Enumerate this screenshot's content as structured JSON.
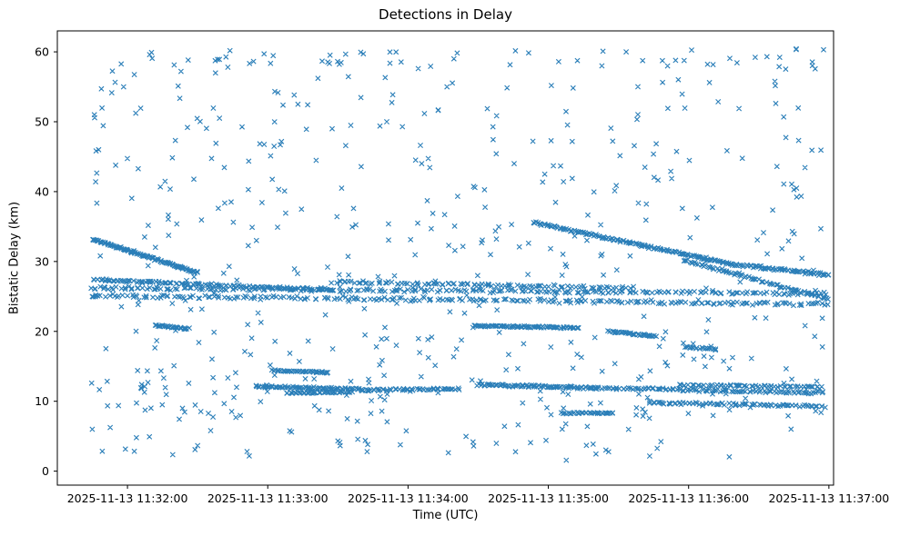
{
  "chart_data": {
    "type": "scatter",
    "title": "Detections in Delay",
    "xlabel": "Time (UTC)",
    "ylabel": "Bistatic Delay (km)",
    "marker": "x",
    "marker_color": "#1f77b4",
    "grid": false,
    "legend": null,
    "x_tick_labels": [
      "2025-11-13 11:32:00",
      "2025-11-13 11:33:00",
      "2025-11-13 11:34:00",
      "2025-11-13 11:35:00",
      "2025-11-13 11:36:00",
      "2025-11-13 11:37:00"
    ],
    "x_tick_seconds": [
      0,
      60,
      120,
      180,
      240,
      300
    ],
    "xlim_seconds": [
      -30,
      302
    ],
    "y_ticks": [
      0,
      10,
      20,
      30,
      40,
      50,
      60
    ],
    "ylim": [
      -2,
      63
    ],
    "seed": 20251113,
    "tracks": [
      {
        "t": [
          -15,
          30
        ],
        "d": [
          33.2,
          28.4
        ],
        "n": 110,
        "jitter": 0.18
      },
      {
        "t": [
          -15,
          88
        ],
        "d": [
          27.4,
          25.9
        ],
        "n": 130,
        "jitter": 0.2
      },
      {
        "t": [
          -16,
          300
        ],
        "d": [
          25.1,
          23.9
        ],
        "n": 240,
        "jitter": 0.3
      },
      {
        "t": [
          -16,
          300
        ],
        "d": [
          26.2,
          25.4
        ],
        "n": 240,
        "jitter": 0.3
      },
      {
        "t": [
          88,
          215
        ],
        "d": [
          27.1,
          26.2
        ],
        "n": 110,
        "jitter": 0.25
      },
      {
        "t": [
          174,
          258
        ],
        "d": [
          35.6,
          29.6
        ],
        "n": 150,
        "jitter": 0.2
      },
      {
        "t": [
          258,
          300
        ],
        "d": [
          29.6,
          28.1
        ],
        "n": 70,
        "jitter": 0.25
      },
      {
        "t": [
          238,
          300
        ],
        "d": [
          30.2,
          24.6
        ],
        "n": 80,
        "jitter": 0.2
      },
      {
        "t": [
          148,
          193
        ],
        "d": [
          20.8,
          20.5
        ],
        "n": 85,
        "jitter": 0.15
      },
      {
        "t": [
          12,
          26
        ],
        "d": [
          20.8,
          20.4
        ],
        "n": 28,
        "jitter": 0.15
      },
      {
        "t": [
          206,
          226
        ],
        "d": [
          20.0,
          19.3
        ],
        "n": 36,
        "jitter": 0.15
      },
      {
        "t": [
          55,
          100
        ],
        "d": [
          12.1,
          11.7
        ],
        "n": 75,
        "jitter": 0.2
      },
      {
        "t": [
          68,
          96
        ],
        "d": [
          11.2,
          11.3
        ],
        "n": 40,
        "jitter": 0.15
      },
      {
        "t": [
          100,
          142
        ],
        "d": [
          11.6,
          11.8
        ],
        "n": 55,
        "jitter": 0.2
      },
      {
        "t": [
          150,
          200
        ],
        "d": [
          12.4,
          11.9
        ],
        "n": 85,
        "jitter": 0.2
      },
      {
        "t": [
          200,
          298
        ],
        "d": [
          11.9,
          11.2
        ],
        "n": 110,
        "jitter": 0.25
      },
      {
        "t": [
          236,
          296
        ],
        "d": [
          12.3,
          12.1
        ],
        "n": 60,
        "jitter": 0.15
      },
      {
        "t": [
          224,
          298
        ],
        "d": [
          9.8,
          9.3
        ],
        "n": 85,
        "jitter": 0.2
      },
      {
        "t": [
          186,
          208
        ],
        "d": [
          8.3,
          8.3
        ],
        "n": 34,
        "jitter": 0.12
      },
      {
        "t": [
          62,
          86
        ],
        "d": [
          14.4,
          14.1
        ],
        "n": 40,
        "jitter": 0.15
      },
      {
        "t": [
          238,
          252
        ],
        "d": [
          17.8,
          17.5
        ],
        "n": 20,
        "jitter": 0.2
      }
    ],
    "clutter": [
      {
        "count": 380,
        "t": [
          -16,
          298
        ],
        "d": [
          17,
          60.5
        ]
      },
      {
        "count": 130,
        "t": [
          -16,
          298
        ],
        "d": [
          8,
          17
        ]
      },
      {
        "count": 60,
        "t": [
          -16,
          298
        ],
        "d": [
          1.5,
          8
        ]
      },
      {
        "count": 40,
        "t": [
          -16,
          298
        ],
        "d": [
          57.5,
          60.2
        ]
      }
    ]
  }
}
